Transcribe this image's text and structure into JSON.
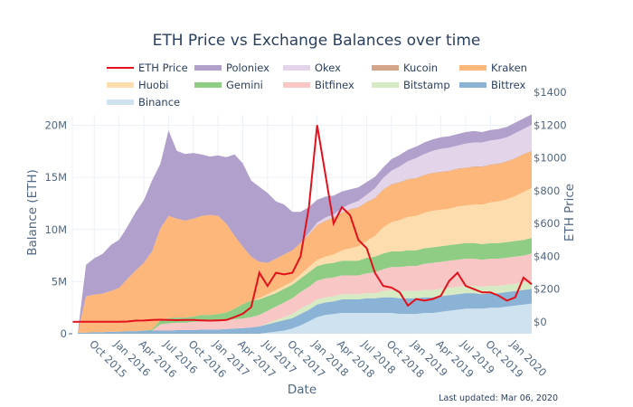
{
  "chart_data": {
    "type": "area",
    "title": "ETH Price vs Exchange Balances over time",
    "xlabel": "Date",
    "ylabel": "Balance (ETH)",
    "y2label": "ETH Price",
    "note": "Last updated: Mar 06, 2020",
    "x_ticks": [
      "Oct 2015",
      "Jan 2016",
      "Apr 2016",
      "Jul 2016",
      "Oct 2016",
      "Jan 2017",
      "Apr 2017",
      "Jul 2017",
      "Oct 2017",
      "Jan 2018",
      "Apr 2018",
      "Jul 2018",
      "Oct 2018",
      "Jan 2019",
      "Apr 2019",
      "Jul 2019",
      "Oct 2019",
      "Jan 2020"
    ],
    "y_ticks": [
      "0",
      "5M",
      "10M",
      "15M",
      "20M"
    ],
    "y_tick_values": [
      0,
      5,
      10,
      15,
      20
    ],
    "y2_ticks": [
      "$0",
      "$200",
      "$400",
      "$600",
      "$800",
      "$1000",
      "$1200",
      "$1400"
    ],
    "y2_tick_values": [
      0,
      200,
      400,
      600,
      800,
      1000,
      1200,
      1400
    ],
    "ylim_millions": [
      0,
      21
    ],
    "y2lim": [
      -80,
      1400
    ],
    "x_range_months": [
      0,
      55
    ],
    "x_start": "Aug 2015",
    "legend_position": "top",
    "grid": true,
    "months": [
      "Aug 2015",
      "Sep 2015",
      "Oct 2015",
      "Nov 2015",
      "Dec 2015",
      "Jan 2016",
      "Feb 2016",
      "Mar 2016",
      "Apr 2016",
      "May 2016",
      "Jun 2016",
      "Jul 2016",
      "Aug 2016",
      "Sep 2016",
      "Oct 2016",
      "Nov 2016",
      "Dec 2016",
      "Jan 2017",
      "Feb 2017",
      "Mar 2017",
      "Apr 2017",
      "May 2017",
      "Jun 2017",
      "Jul 2017",
      "Aug 2017",
      "Sep 2017",
      "Oct 2017",
      "Nov 2017",
      "Dec 2017",
      "Jan 2018",
      "Feb 2018",
      "Mar 2018",
      "Apr 2018",
      "May 2018",
      "Jun 2018",
      "Jul 2018",
      "Aug 2018",
      "Sep 2018",
      "Oct 2018",
      "Nov 2018",
      "Dec 2018",
      "Jan 2019",
      "Feb 2019",
      "Mar 2019",
      "Apr 2019",
      "May 2019",
      "Jun 2019",
      "Jul 2019",
      "Aug 2019",
      "Sep 2019",
      "Oct 2019",
      "Nov 2019",
      "Dec 2019",
      "Jan 2020",
      "Feb 2020",
      "Mar 2020"
    ],
    "stack_order_bottom_to_top": [
      "Binance",
      "Bittrex",
      "Bitstamp",
      "Bitfinex",
      "Gemini",
      "Huobi",
      "Kraken",
      "Kucoin",
      "Okex",
      "Poloniex"
    ],
    "series_millions": [
      {
        "name": "Binance",
        "color": "#cfe2f0",
        "values": [
          0,
          0,
          0,
          0,
          0,
          0,
          0,
          0,
          0,
          0,
          0,
          0,
          0,
          0,
          0,
          0,
          0,
          0,
          0,
          0,
          0,
          0,
          0,
          0.1,
          0.2,
          0.3,
          0.5,
          0.8,
          1.2,
          1.6,
          1.8,
          1.9,
          2.0,
          2.0,
          2.0,
          2.0,
          2.0,
          2.0,
          2.0,
          1.9,
          1.9,
          1.9,
          2.0,
          2.0,
          2.1,
          2.2,
          2.3,
          2.4,
          2.4,
          2.4,
          2.5,
          2.5,
          2.6,
          2.7,
          2.8,
          2.9
        ]
      },
      {
        "name": "Bittrex",
        "color": "#8ab3d5",
        "values": [
          0.1,
          0.1,
          0.15,
          0.15,
          0.2,
          0.2,
          0.25,
          0.25,
          0.3,
          0.3,
          0.3,
          0.3,
          0.35,
          0.35,
          0.35,
          0.4,
          0.4,
          0.4,
          0.45,
          0.5,
          0.55,
          0.6,
          0.7,
          0.8,
          0.9,
          1.0,
          1.0,
          1.1,
          1.1,
          1.2,
          1.2,
          1.2,
          1.3,
          1.3,
          1.3,
          1.4,
          1.4,
          1.5,
          1.5,
          1.5,
          1.5,
          1.5,
          1.5,
          1.5,
          1.5,
          1.5,
          1.5,
          1.5,
          1.5,
          1.4,
          1.4,
          1.4,
          1.4,
          1.4,
          1.4,
          1.4
        ]
      },
      {
        "name": "Bitstamp",
        "color": "#d6eac3",
        "values": [
          0,
          0,
          0,
          0,
          0,
          0,
          0,
          0,
          0,
          0,
          0,
          0,
          0,
          0,
          0,
          0,
          0,
          0,
          0,
          0,
          0,
          0,
          0,
          0.1,
          0.2,
          0.3,
          0.4,
          0.5,
          0.5,
          0.5,
          0.5,
          0.5,
          0.5,
          0.5,
          0.5,
          0.5,
          0.5,
          0.6,
          0.7,
          0.7,
          0.7,
          0.7,
          0.7,
          0.7,
          0.7,
          0.7,
          0.7,
          0.7,
          0.7,
          0.7,
          0.7,
          0.7,
          0.7,
          0.7,
          0.7,
          0.7
        ]
      },
      {
        "name": "Bitfinex",
        "color": "#f9c6c6",
        "values": [
          0,
          0,
          0,
          0,
          0,
          0,
          0,
          0,
          0,
          0,
          0.6,
          0.7,
          0.7,
          0.7,
          0.8,
          0.8,
          0.8,
          0.8,
          0.8,
          0.9,
          0.9,
          1.0,
          1.1,
          1.2,
          1.3,
          1.4,
          1.5,
          1.6,
          1.7,
          1.8,
          1.8,
          1.8,
          1.8,
          1.8,
          1.8,
          1.9,
          2.0,
          2.1,
          2.2,
          2.3,
          2.4,
          2.4,
          2.5,
          2.6,
          2.6,
          2.6,
          2.6,
          2.6,
          2.6,
          2.6,
          2.6,
          2.6,
          2.6,
          2.6,
          2.6,
          2.7
        ]
      },
      {
        "name": "Gemini",
        "color": "#8fcd85",
        "values": [
          0,
          0,
          0,
          0,
          0,
          0,
          0,
          0,
          0,
          0.1,
          0.4,
          0.5,
          0.5,
          0.5,
          0.5,
          0.6,
          0.6,
          0.7,
          0.8,
          1.0,
          1.4,
          1.6,
          1.5,
          1.4,
          1.3,
          1.3,
          1.3,
          1.3,
          1.4,
          1.4,
          1.4,
          1.4,
          1.4,
          1.4,
          1.4,
          1.5,
          1.5,
          1.5,
          1.5,
          1.5,
          1.5,
          1.5,
          1.5,
          1.5,
          1.5,
          1.5,
          1.5,
          1.5,
          1.5,
          1.5,
          1.5,
          1.5,
          1.5,
          1.5,
          1.5,
          1.5
        ]
      },
      {
        "name": "Huobi",
        "color": "#fddcae",
        "values": [
          0,
          0,
          0,
          0,
          0,
          0,
          0,
          0,
          0,
          0,
          0,
          0,
          0,
          0,
          0,
          0,
          0,
          0,
          0,
          0,
          0,
          0,
          0.1,
          0.2,
          0.3,
          0.3,
          0.3,
          0.4,
          0.5,
          0.6,
          0.7,
          0.8,
          1.0,
          1.2,
          1.4,
          1.6,
          2.0,
          2.5,
          2.8,
          3.0,
          3.2,
          3.3,
          3.4,
          3.5,
          3.5,
          3.5,
          3.6,
          3.6,
          3.7,
          3.8,
          3.9,
          4.0,
          4.1,
          4.3,
          4.6,
          4.8
        ]
      },
      {
        "name": "Kraken",
        "color": "#fdb77a",
        "values": [
          0,
          3.5,
          3.6,
          3.7,
          3.9,
          4.2,
          5.0,
          5.8,
          6.5,
          7.5,
          8.8,
          9.8,
          9.5,
          9.3,
          9.4,
          9.5,
          9.6,
          9.4,
          8.5,
          7.0,
          5.5,
          4.2,
          3.5,
          3.0,
          3.0,
          3.0,
          3.0,
          3.0,
          3.1,
          3.3,
          3.4,
          3.5,
          3.6,
          3.7,
          3.7,
          3.7,
          3.6,
          3.6,
          3.6,
          3.6,
          3.6,
          3.6,
          3.6,
          3.6,
          3.6,
          3.6,
          3.6,
          3.6,
          3.6,
          3.6,
          3.6,
          3.6,
          3.6,
          3.6,
          3.6,
          3.5
        ]
      },
      {
        "name": "Kucoin",
        "color": "#d3a489",
        "values": [
          0,
          0,
          0,
          0,
          0,
          0,
          0,
          0,
          0,
          0,
          0,
          0,
          0,
          0,
          0,
          0,
          0,
          0,
          0,
          0,
          0,
          0,
          0,
          0,
          0,
          0,
          0,
          0,
          0.05,
          0.05,
          0.05,
          0.05,
          0.05,
          0.05,
          0.05,
          0.05,
          0.05,
          0.05,
          0.05,
          0.05,
          0.05,
          0.05,
          0.05,
          0.05,
          0.05,
          0.05,
          0.05,
          0.05,
          0.05,
          0.05,
          0.05,
          0.05,
          0.05,
          0.05,
          0.05,
          0.05
        ]
      },
      {
        "name": "Okex",
        "color": "#e3d4ea",
        "values": [
          0,
          0,
          0,
          0,
          0,
          0,
          0,
          0,
          0,
          0,
          0,
          0,
          0,
          0,
          0,
          0,
          0,
          0,
          0,
          0,
          0,
          0,
          0,
          0,
          0,
          0,
          0,
          0,
          0.1,
          0.2,
          0.3,
          0.3,
          0.4,
          0.5,
          0.6,
          0.7,
          0.9,
          1.1,
          1.3,
          1.5,
          1.7,
          1.9,
          2.0,
          2.1,
          2.2,
          2.2,
          2.2,
          2.3,
          2.3,
          2.3,
          2.3,
          2.3,
          2.3,
          2.4,
          2.4,
          2.5
        ]
      },
      {
        "name": "Poloniex",
        "color": "#b19fcc",
        "values": [
          0,
          3.0,
          3.5,
          3.8,
          4.4,
          4.6,
          5.0,
          5.6,
          6.0,
          6.8,
          6.2,
          8.2,
          6.5,
          6.4,
          6.3,
          5.9,
          5.6,
          5.8,
          6.4,
          7.8,
          8.0,
          7.3,
          7.2,
          6.7,
          5.5,
          4.8,
          3.7,
          3.0,
          2.5,
          2.2,
          2.0,
          1.8,
          1.6,
          1.4,
          1.3,
          1.2,
          1.1,
          1.0,
          1.1,
          1.1,
          1.1,
          1.1,
          1.1,
          1.1,
          1.1,
          1.1,
          1.1,
          1.1,
          1.1,
          1.0,
          1.0,
          1.0,
          1.0,
          1.0,
          1.0,
          1.0
        ]
      }
    ],
    "price_series": {
      "name": "ETH Price",
      "color": "#e3111b",
      "values": [
        1,
        1,
        1,
        1,
        1,
        1,
        3,
        8,
        9,
        12,
        14,
        12,
        11,
        12,
        12,
        10,
        8,
        10,
        12,
        30,
        50,
        90,
        300,
        220,
        300,
        290,
        300,
        400,
        700,
        1200,
        900,
        600,
        700,
        650,
        500,
        450,
        300,
        220,
        210,
        180,
        100,
        140,
        130,
        140,
        160,
        250,
        300,
        220,
        200,
        180,
        180,
        160,
        130,
        150,
        270,
        230
      ]
    }
  },
  "legend": [
    {
      "label": "ETH Price",
      "kind": "line",
      "color": "#e3111b"
    },
    {
      "label": "Poloniex",
      "kind": "area",
      "color": "#b19fcc"
    },
    {
      "label": "Okex",
      "kind": "area",
      "color": "#e3d4ea"
    },
    {
      "label": "Kucoin",
      "kind": "area",
      "color": "#d3a489"
    },
    {
      "label": "Kraken",
      "kind": "area",
      "color": "#fdb77a"
    },
    {
      "label": "Huobi",
      "kind": "area",
      "color": "#fddcae"
    },
    {
      "label": "Gemini",
      "kind": "area",
      "color": "#8fcd85"
    },
    {
      "label": "Bitfinex",
      "kind": "area",
      "color": "#f9c6c6"
    },
    {
      "label": "Bitstamp",
      "kind": "area",
      "color": "#d6eac3"
    },
    {
      "label": "Bittrex",
      "kind": "area",
      "color": "#8ab3d5"
    },
    {
      "label": "Binance",
      "kind": "area",
      "color": "#cfe2f0"
    }
  ]
}
